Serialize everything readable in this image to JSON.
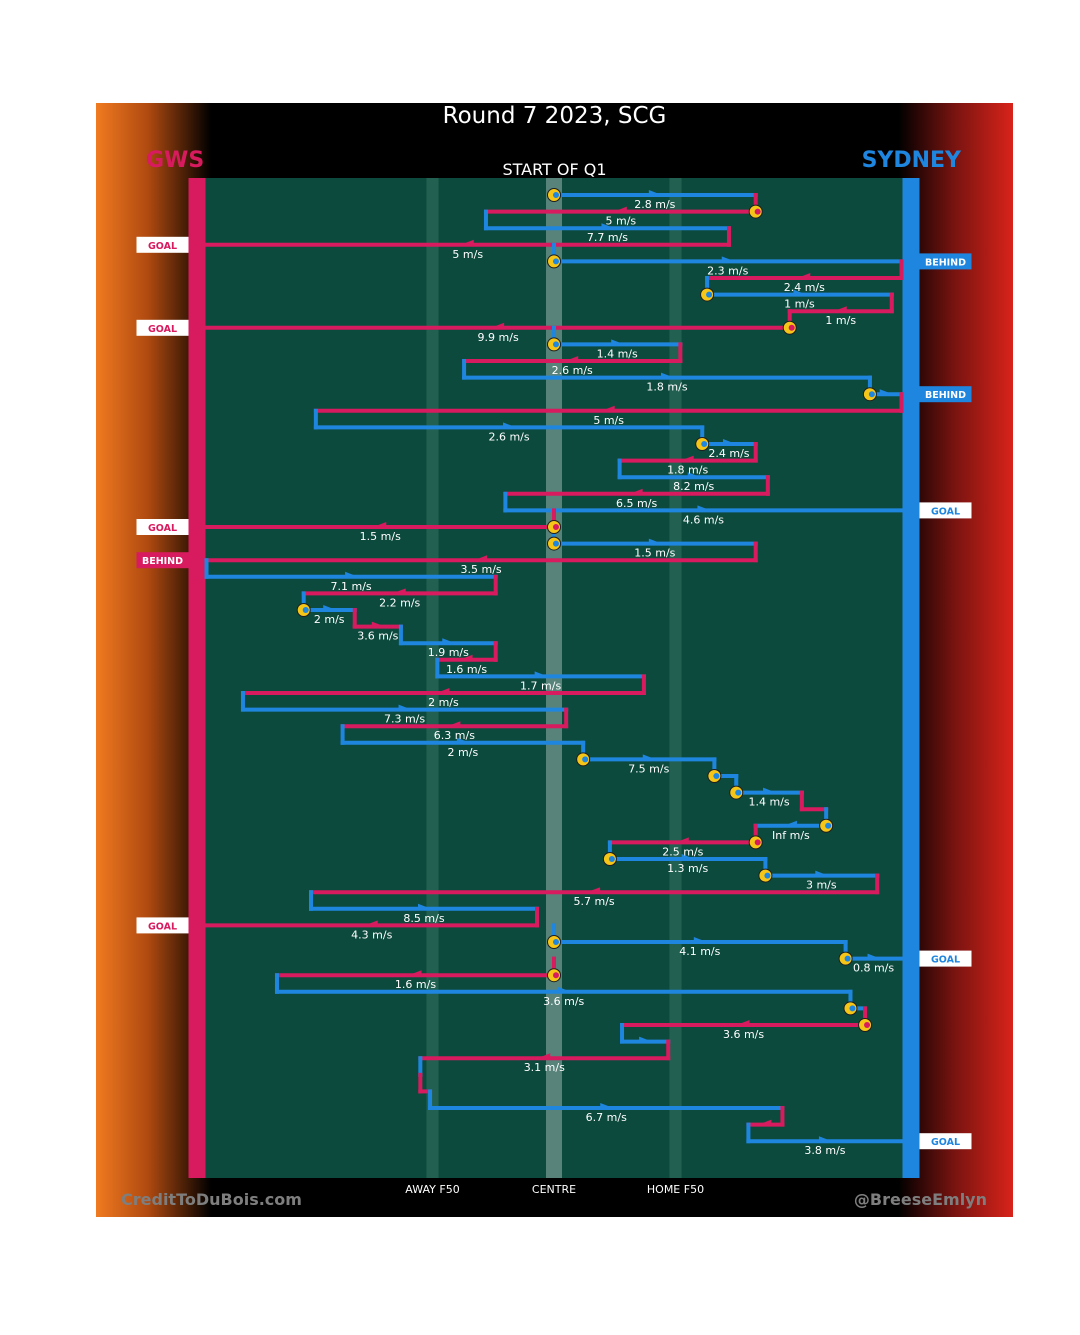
{
  "title": "Round 7 2023, SCG",
  "subtitle": "START OF Q1",
  "teams": {
    "away": "GWS",
    "home": "SYDNEY",
    "away_color": "#d81b5e",
    "home_color": "#1f86e0"
  },
  "credits": {
    "left": "CreditToDuBois.com",
    "right": "@BreeseEmlyn"
  },
  "chart_data": {
    "type": "line",
    "description_axis": "ball position along ground, GWS goal (left) to Sydney goal (right)",
    "x_ticks": [
      {
        "label": "AWAY F50",
        "x": -50
      },
      {
        "label": "CENTRE",
        "x": 0
      },
      {
        "label": "HOME F50",
        "x": 50
      }
    ],
    "x_range": [
      -150,
      150
    ],
    "segments": [
      {
        "team": "SYD",
        "row": 1,
        "from": 0,
        "to": 83,
        "speed": "2.8 m/s",
        "marker_start": true
      },
      {
        "team": "GWS",
        "row": 2,
        "from": 83,
        "to": -28,
        "speed": "5 m/s",
        "marker_start": true
      },
      {
        "team": "SYD",
        "row": 3,
        "from": -28,
        "to": 72,
        "speed": "7.7 m/s"
      },
      {
        "team": "GWS",
        "row": 4,
        "from": 72,
        "to": -143,
        "speed": "5 m/s",
        "outcome": "GOAL"
      },
      {
        "team": "SYD",
        "row": 5,
        "from": 0,
        "to": 143,
        "speed": "2.3 m/s",
        "marker_start": true,
        "outcome": "BEHIND"
      },
      {
        "team": "GWS",
        "row": 6,
        "from": 143,
        "to": 63,
        "speed": "2.4 m/s"
      },
      {
        "team": "SYD",
        "row": 7,
        "from": 63,
        "to": 139,
        "speed": "1 m/s",
        "marker_start": true
      },
      {
        "team": "GWS",
        "row": 8,
        "from": 139,
        "to": 97,
        "speed": "1 m/s"
      },
      {
        "team": "GWS",
        "row": 9,
        "from": 97,
        "to": -143,
        "speed": "9.9 m/s",
        "marker_start": true,
        "outcome": "GOAL"
      },
      {
        "team": "SYD",
        "row": 10,
        "from": 0,
        "to": 52,
        "speed": "1.4 m/s",
        "marker_start": true
      },
      {
        "team": "GWS",
        "row": 11,
        "from": 52,
        "to": -37,
        "speed": "2.6 m/s"
      },
      {
        "team": "SYD",
        "row": 12,
        "from": -37,
        "to": 130,
        "speed": "1.8 m/s"
      },
      {
        "team": "SYD",
        "row": 13,
        "from": 130,
        "to": 143,
        "speed": "",
        "marker_start": true,
        "outcome": "BEHIND"
      },
      {
        "team": "GWS",
        "row": 14,
        "from": 143,
        "to": -98,
        "speed": "5 m/s"
      },
      {
        "team": "SYD",
        "row": 15,
        "from": -98,
        "to": 61,
        "speed": "2.6 m/s"
      },
      {
        "team": "SYD",
        "row": 16,
        "from": 61,
        "to": 83,
        "speed": "2.4 m/s",
        "marker_start": true
      },
      {
        "team": "GWS",
        "row": 17,
        "from": 83,
        "to": 27,
        "speed": "1.8 m/s"
      },
      {
        "team": "SYD",
        "row": 18,
        "from": 27,
        "to": 88,
        "speed": "8.2 m/s"
      },
      {
        "team": "GWS",
        "row": 19,
        "from": 88,
        "to": -20,
        "speed": "6.5 m/s"
      },
      {
        "team": "SYD",
        "row": 20,
        "from": -20,
        "to": 143,
        "speed": "4.6 m/s",
        "outcome": "GOAL"
      },
      {
        "team": "GWS",
        "row": 21,
        "from": 0,
        "to": -143,
        "speed": "1.5 m/s",
        "marker_start": true,
        "outcome": "GOAL"
      },
      {
        "team": "SYD",
        "row": 22,
        "from": 0,
        "to": 83,
        "speed": "1.5 m/s",
        "marker_start": true
      },
      {
        "team": "GWS",
        "row": 23,
        "from": 83,
        "to": -143,
        "speed": "3.5 m/s",
        "outcome": "BEHIND"
      },
      {
        "team": "SYD",
        "row": 24,
        "from": -143,
        "to": -24,
        "speed": "7.1 m/s"
      },
      {
        "team": "GWS",
        "row": 25,
        "from": -24,
        "to": -103,
        "speed": "2.2 m/s"
      },
      {
        "team": "SYD",
        "row": 26,
        "from": -103,
        "to": -82,
        "speed": "2 m/s",
        "marker_start": true
      },
      {
        "team": "GWS",
        "row": 27,
        "from": -82,
        "to": -63,
        "speed": "3.6 m/s"
      },
      {
        "team": "SYD",
        "row": 28,
        "from": -63,
        "to": -24,
        "speed": "1.9 m/s"
      },
      {
        "team": "GWS",
        "row": 29,
        "from": -24,
        "to": -48,
        "speed": "1.6 m/s"
      },
      {
        "team": "SYD",
        "row": 30,
        "from": -48,
        "to": 37,
        "speed": "1.7 m/s"
      },
      {
        "team": "GWS",
        "row": 31,
        "from": 37,
        "to": -128,
        "speed": "2 m/s"
      },
      {
        "team": "SYD",
        "row": 32,
        "from": -128,
        "to": 5,
        "speed": "7.3 m/s"
      },
      {
        "team": "GWS",
        "row": 33,
        "from": 5,
        "to": -87,
        "speed": "6.3 m/s"
      },
      {
        "team": "SYD",
        "row": 34,
        "from": -87,
        "to": 12,
        "speed": "2 m/s"
      },
      {
        "team": "SYD",
        "row": 35,
        "from": 12,
        "to": 66,
        "speed": "7.5 m/s",
        "marker_start": true
      },
      {
        "team": "SYD",
        "row": 36,
        "from": 66,
        "to": 75,
        "speed": "",
        "marker_start": true
      },
      {
        "team": "SYD",
        "row": 37,
        "from": 75,
        "to": 102,
        "speed": "1.4 m/s",
        "marker_start": true
      },
      {
        "team": "GWS",
        "row": 38,
        "from": 102,
        "to": 112,
        "speed": ""
      },
      {
        "team": "SYD",
        "row": 39,
        "from": 112,
        "to": 83,
        "speed": "Inf m/s",
        "marker_start": true
      },
      {
        "team": "GWS",
        "row": 40,
        "from": 83,
        "to": 23,
        "speed": "2.5 m/s",
        "marker_start": true
      },
      {
        "team": "SYD",
        "row": 41,
        "from": 23,
        "to": 87,
        "speed": "1.3 m/s",
        "marker_start": true
      },
      {
        "team": "SYD",
        "row": 42,
        "from": 87,
        "to": 133,
        "speed": "3 m/s",
        "marker_start": true
      },
      {
        "team": "GWS",
        "row": 43,
        "from": 133,
        "to": -100,
        "speed": "5.7 m/s"
      },
      {
        "team": "SYD",
        "row": 44,
        "from": -100,
        "to": -7,
        "speed": "8.5 m/s"
      },
      {
        "team": "GWS",
        "row": 45,
        "from": -7,
        "to": -143,
        "speed": "4.3 m/s",
        "outcome": "GOAL"
      },
      {
        "team": "SYD",
        "row": 46,
        "from": 0,
        "to": 120,
        "speed": "4.1 m/s",
        "marker_start": true
      },
      {
        "team": "SYD",
        "row": 47,
        "from": 120,
        "to": 143,
        "speed": "0.8 m/s",
        "marker_start": true,
        "outcome": "GOAL"
      },
      {
        "team": "GWS",
        "row": 48,
        "from": 0,
        "to": -114,
        "speed": "1.6 m/s",
        "marker_start": true
      },
      {
        "team": "SYD",
        "row": 49,
        "from": -114,
        "to": 122,
        "speed": "3.6 m/s"
      },
      {
        "team": "SYD",
        "row": 50,
        "from": 122,
        "to": 128,
        "speed": "",
        "marker_start": true
      },
      {
        "team": "GWS",
        "row": 51,
        "from": 128,
        "to": 28,
        "speed": "3.6 m/s",
        "marker_start": true
      },
      {
        "team": "SYD",
        "row": 52,
        "from": 28,
        "to": 47,
        "speed": ""
      },
      {
        "team": "GWS",
        "row": 53,
        "from": 47,
        "to": -55,
        "speed": "3.1 m/s"
      },
      {
        "team": "SYD",
        "row": 54,
        "from": -55,
        "to": -55,
        "speed": ""
      },
      {
        "team": "GWS",
        "row": 55,
        "from": -55,
        "to": -51,
        "speed": ""
      },
      {
        "team": "SYD",
        "row": 56,
        "from": -51,
        "to": 94,
        "speed": "6.7 m/s"
      },
      {
        "team": "GWS",
        "row": 57,
        "from": 94,
        "to": 80,
        "speed": ""
      },
      {
        "team": "SYD",
        "row": 58,
        "from": 80,
        "to": 143,
        "speed": "3.8 m/s",
        "outcome": "GOAL"
      }
    ]
  }
}
